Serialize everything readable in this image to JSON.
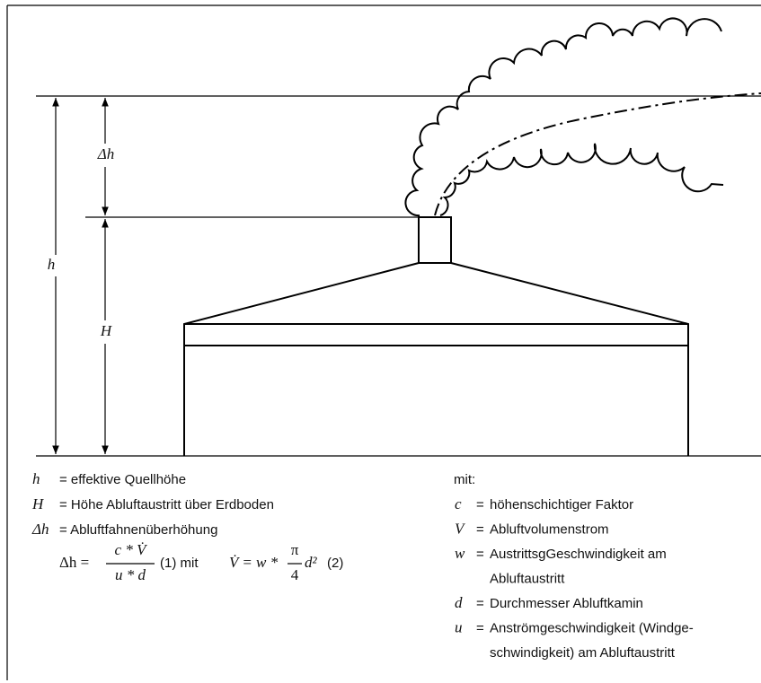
{
  "diagram": {
    "labels": {
      "h": "h",
      "delta_h": "Δh",
      "H": "H"
    },
    "legend_left": [
      {
        "symbol": "h",
        "text": "= effektive Quellhöhe"
      },
      {
        "symbol": "H",
        "text": "= Höhe Abluftaustritt über Erdboden"
      },
      {
        "symbol": "Δh",
        "text": "= Abluftfahnenüberhöhung"
      }
    ],
    "formula": {
      "lhs": "Δh =",
      "numerator": "c * V̇",
      "denominator": "u * d",
      "eq1": "(1)  mit",
      "rhs": "V̇ = w *",
      "pi": "π",
      "four": "4",
      "d2": "d²",
      "eq2": "(2)"
    },
    "legend_right": {
      "intro": "mit:",
      "items": [
        {
          "symbol": "c",
          "eq": "=",
          "lines": [
            "höhenschichtiger Faktor"
          ]
        },
        {
          "symbol": "V",
          "eq": "=",
          "lines": [
            "Abluftvolumenstrom"
          ]
        },
        {
          "symbol": "w",
          "eq": "=",
          "lines": [
            "AustrittsgGeschwindigkeit am",
            "Abluftaustritt"
          ]
        },
        {
          "symbol": "d",
          "eq": "=",
          "lines": [
            "Durchmesser Abluftkamin"
          ]
        },
        {
          "symbol": "u",
          "eq": "=",
          "lines": [
            "Anströmgeschwindigkeit (Windge-",
            "schwindigkeit)  am Abluftaustritt"
          ]
        }
      ]
    }
  }
}
